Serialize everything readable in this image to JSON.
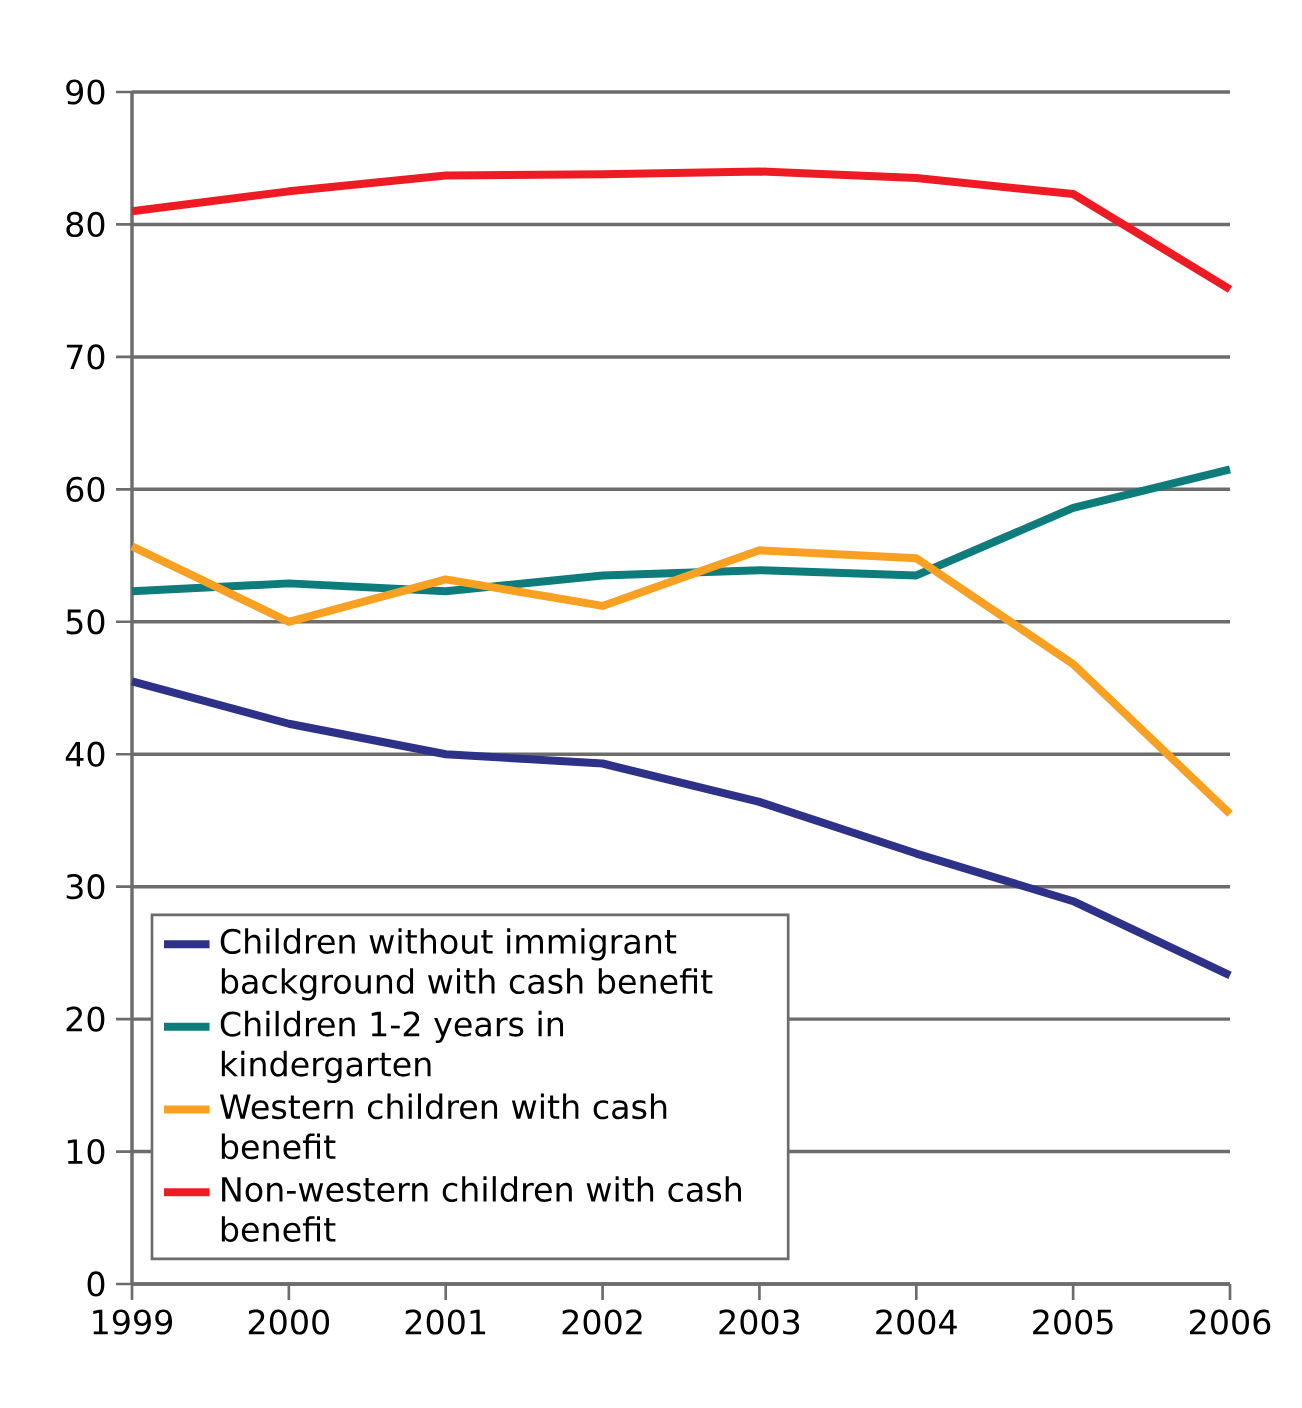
{
  "chart_data": {
    "type": "line",
    "categories": [
      "1999",
      "2000",
      "2001",
      "2002",
      "2003",
      "2004",
      "2005",
      "2006"
    ],
    "ylim": [
      0,
      90
    ],
    "yticks": [
      0,
      10,
      20,
      30,
      40,
      50,
      60,
      70,
      80,
      90
    ],
    "grid": "y",
    "legend": "bottom left",
    "line_style": "solid",
    "marker": "none",
    "series": [
      {
        "name": "Children without immigrant background with cash benefit",
        "color": "#2e3188",
        "values": [
          45.5,
          42.3,
          40.0,
          39.3,
          36.4,
          32.5,
          28.9,
          23.3
        ]
      },
      {
        "name": "Children 1-2 years in kindergarten",
        "color": "#0e7c7b",
        "values": [
          52.3,
          52.9,
          52.3,
          53.5,
          53.9,
          53.5,
          58.6,
          61.5
        ]
      },
      {
        "name": "Western children with cash benefit",
        "color": "#f7a021",
        "values": [
          55.7,
          50.0,
          53.2,
          51.2,
          55.4,
          54.8,
          46.8,
          35.5
        ]
      },
      {
        "name": "Non-western children with cash benefit",
        "color": "#ed1c24",
        "values": [
          81.0,
          82.5,
          83.7,
          83.8,
          84.0,
          83.5,
          82.3,
          75.1
        ]
      }
    ]
  }
}
